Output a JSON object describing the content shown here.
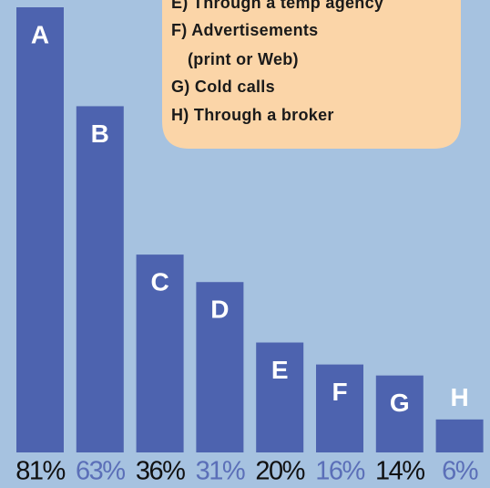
{
  "chart_data": {
    "type": "bar",
    "legend_text": [
      "E) Through a temp agency",
      "F) Advertisements",
      "(print or Web)",
      "G) Cold calls",
      "H) Through a broker"
    ],
    "categories": [
      "A",
      "B",
      "C",
      "D",
      "E",
      "F",
      "G",
      "H"
    ],
    "values": [
      81,
      63,
      36,
      31,
      20,
      16,
      14,
      6
    ],
    "value_labels": [
      "81%",
      "63%",
      "36%",
      "31%",
      "20%",
      "16%",
      "14%",
      "6%"
    ],
    "color": "#4d63af",
    "background": "#a6c2e0",
    "legend_background": "#fbd5a8",
    "value_label_colors": [
      "#111111",
      "#5b6fb8",
      "#111111",
      "#5b6fb8",
      "#111111",
      "#5b6fb8",
      "#111111",
      "#5b6fb8"
    ]
  }
}
